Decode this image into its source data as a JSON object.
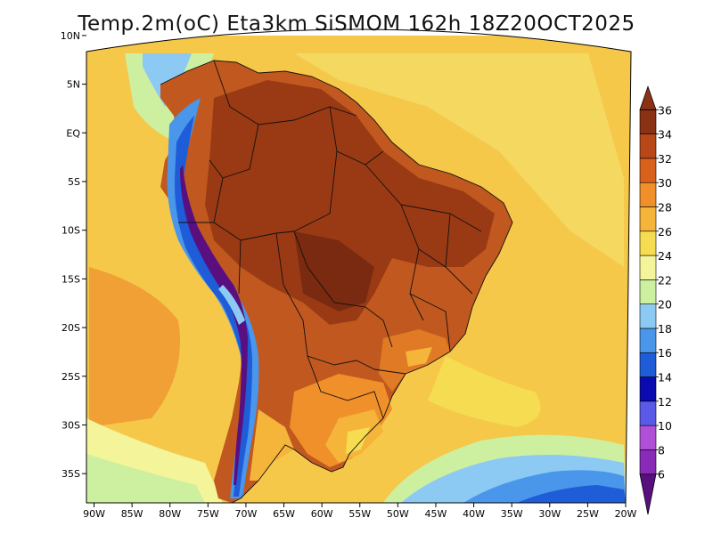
{
  "title": "Temp.2m(oC) Eta3km SiSMOM 162h 18Z20OCT2025",
  "map": {
    "variable": "2 m temperature",
    "unit": "oC",
    "lon_range": [
      -91,
      -20
    ],
    "lat_range": [
      -38,
      12
    ],
    "lon_ticks": [
      "90W",
      "85W",
      "80W",
      "75W",
      "70W",
      "65W",
      "60W",
      "55W",
      "50W",
      "45W",
      "40W",
      "35W",
      "30W",
      "25W",
      "20W"
    ],
    "lon_tick_values": [
      -90,
      -85,
      -80,
      -75,
      -70,
      -65,
      -60,
      -55,
      -50,
      -45,
      -40,
      -35,
      -30,
      -25,
      -20
    ],
    "lat_ticks": [
      "10N",
      "5N",
      "EQ",
      "5S",
      "10S",
      "15S",
      "20S",
      "25S",
      "30S",
      "35S"
    ],
    "lat_tick_values": [
      10,
      5,
      0,
      -5,
      -10,
      -15,
      -20,
      -25,
      -30,
      -35
    ]
  },
  "colorbar": {
    "labels": [
      "6",
      "8",
      "10",
      "12",
      "14",
      "16",
      "18",
      "20",
      "22",
      "24",
      "26",
      "28",
      "30",
      "32",
      "34",
      "36"
    ],
    "colors": [
      "#5a0f80",
      "#8a2bb8",
      "#b050d8",
      "#5a5ae8",
      "#0a0ab0",
      "#1e5cd8",
      "#4a96ea",
      "#8ccaf4",
      "#cdf0a0",
      "#f4f49a",
      "#f5dc50",
      "#f5b43a",
      "#f0902a",
      "#d8621c",
      "#b84818",
      "#8a3214"
    ]
  }
}
